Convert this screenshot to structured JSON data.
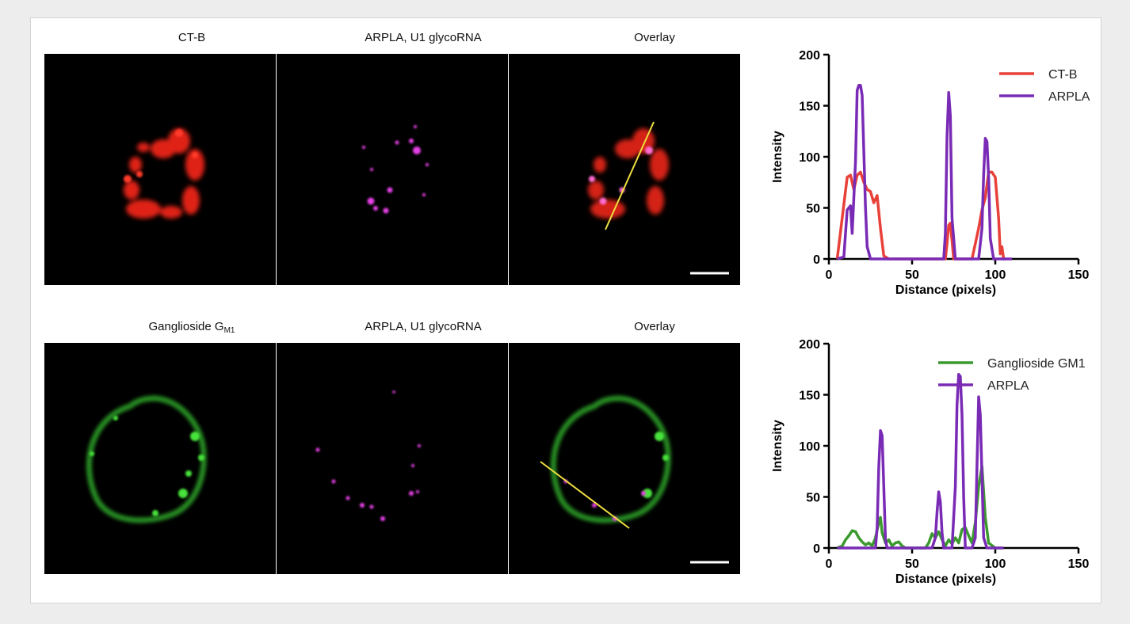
{
  "figure": {
    "row1": {
      "panel_titles": [
        "CT-B",
        "ARPLA, U1 glycoRNA",
        "Overlay"
      ]
    },
    "row2": {
      "panel_titles": [
        "Ganglioside G",
        "ARPLA, U1 glycoRNA",
        "Overlay"
      ],
      "subscript": "M1"
    }
  },
  "chart_data": [
    {
      "type": "line",
      "xlabel": "Distance (pixels)",
      "ylabel": "Intensity",
      "xlim": [
        0,
        150
      ],
      "ylim": [
        0,
        200
      ],
      "xticks": [
        0,
        50,
        100,
        150
      ],
      "yticks": [
        0,
        50,
        100,
        150,
        200
      ],
      "legend_position": "top-right",
      "series": [
        {
          "name": "CT-B",
          "color": "#e8413a",
          "x": [
            5,
            8,
            11,
            13,
            15,
            17,
            19,
            21,
            23,
            25,
            27,
            29,
            31,
            33,
            36,
            60,
            70,
            71,
            72,
            73,
            74,
            75,
            86,
            88,
            90,
            92,
            94,
            96,
            98,
            100,
            102,
            103,
            104,
            105,
            106
          ],
          "y": [
            0,
            40,
            80,
            82,
            68,
            82,
            85,
            75,
            68,
            66,
            55,
            62,
            30,
            3,
            0,
            0,
            0,
            15,
            33,
            35,
            18,
            0,
            0,
            15,
            30,
            48,
            60,
            85,
            85,
            80,
            40,
            5,
            12,
            0,
            0
          ]
        },
        {
          "name": "ARPLA",
          "color": "#7a2bb5",
          "x": [
            5,
            9,
            11,
            13,
            14,
            16,
            17,
            18,
            19,
            20,
            22,
            23,
            25,
            28,
            30,
            35,
            66,
            69,
            70,
            71,
            72,
            73,
            74,
            76,
            86,
            90,
            92,
            93,
            94,
            95,
            96,
            97,
            99,
            104,
            110
          ],
          "y": [
            0,
            2,
            48,
            52,
            25,
            95,
            165,
            170,
            170,
            160,
            50,
            12,
            0,
            0,
            0,
            0,
            0,
            0,
            25,
            120,
            163,
            140,
            40,
            0,
            0,
            0,
            30,
            82,
            118,
            115,
            80,
            20,
            0,
            0,
            0
          ]
        }
      ]
    },
    {
      "type": "line",
      "xlabel": "Distance (pixels)",
      "ylabel": "Intensity",
      "xlim": [
        0,
        150
      ],
      "ylim": [
        0,
        200
      ],
      "xticks": [
        0,
        50,
        100,
        150
      ],
      "yticks": [
        0,
        50,
        100,
        150,
        200
      ],
      "legend_position": "top-right",
      "series": [
        {
          "name": "Ganglioside GM1",
          "color": "#3a9a2e",
          "x": [
            5,
            8,
            10,
            12,
            14,
            16,
            18,
            20,
            22,
            24,
            26,
            28,
            30,
            31,
            32,
            34,
            36,
            38,
            40,
            42,
            44,
            46,
            58,
            60,
            62,
            64,
            66,
            68,
            70,
            72,
            74,
            76,
            78,
            80,
            82,
            84,
            86,
            88,
            90,
            92,
            94,
            96,
            100,
            104
          ],
          "y": [
            0,
            2,
            8,
            12,
            17,
            16,
            10,
            6,
            3,
            5,
            2,
            10,
            25,
            30,
            15,
            5,
            8,
            2,
            5,
            6,
            2,
            0,
            0,
            5,
            14,
            10,
            16,
            8,
            2,
            8,
            4,
            10,
            5,
            18,
            20,
            12,
            5,
            25,
            60,
            80,
            30,
            5,
            0,
            0
          ]
        },
        {
          "name": "ARPLA",
          "color": "#7a2bb5",
          "x": [
            5,
            28,
            29,
            30,
            31,
            32,
            33,
            34,
            35,
            62,
            64,
            65,
            66,
            67,
            68,
            69,
            74,
            76,
            77,
            78,
            79,
            80,
            81,
            82,
            86,
            88,
            89,
            90,
            91,
            92,
            93,
            95,
            105
          ],
          "y": [
            0,
            0,
            20,
            80,
            115,
            110,
            60,
            8,
            0,
            0,
            10,
            35,
            55,
            45,
            15,
            0,
            0,
            60,
            140,
            170,
            168,
            130,
            50,
            0,
            0,
            10,
            80,
            148,
            130,
            70,
            10,
            0,
            0
          ]
        }
      ]
    }
  ]
}
